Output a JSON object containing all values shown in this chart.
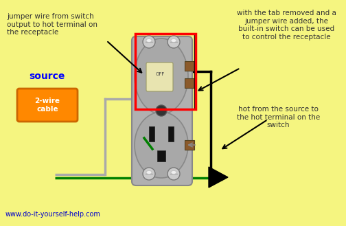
{
  "bg_color": "#f5f580",
  "website_text": "www.do-it-yourself-help.com",
  "label1": "jumper wire from switch\noutput to hot terminal on\nthe receptacle",
  "label2": "with the tab removed and a\njumper wire added, the\nbuilt-in switch can be used\nto control the receptacle",
  "label3": "hot from the source to\nthe hot terminal on the\nswitch",
  "source_label": "source",
  "cable_label": "2-wire\ncable"
}
